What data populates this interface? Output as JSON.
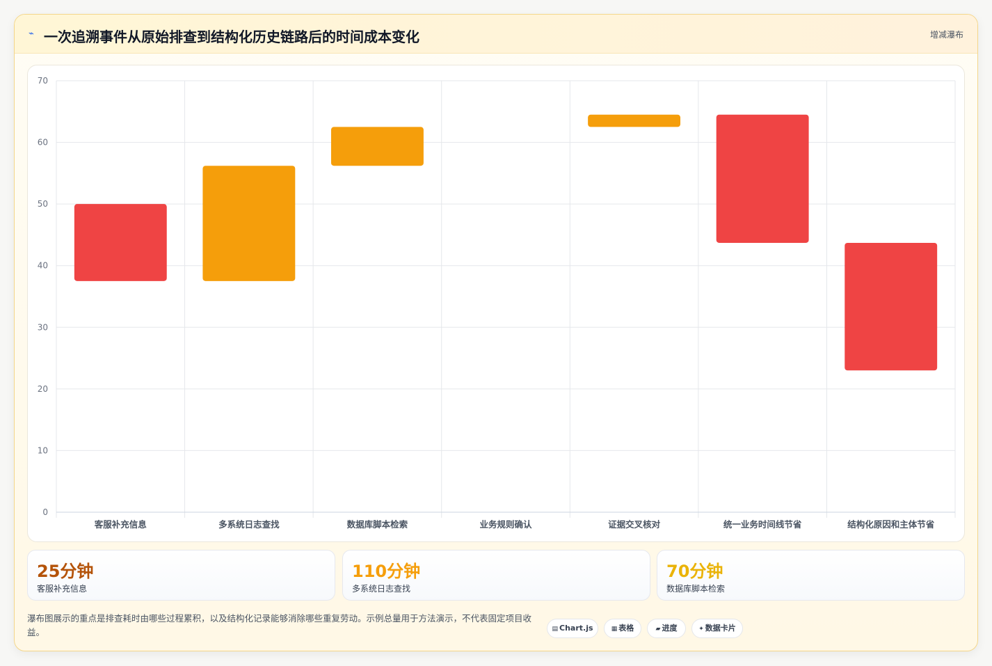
{
  "header": {
    "icon": "lightning-icon",
    "title": "一次追溯事件从原始排查到结构化历史链路后的时间成本变化",
    "chart_kind": "增减瀑布"
  },
  "colors": {
    "increase": "#f59e0b",
    "decrease": "#ef4444",
    "grid": "#e5e7eb",
    "tick": "#6b7280"
  },
  "chart_data": {
    "type": "bar",
    "subtype": "waterfall",
    "categories": [
      "客服补充信息",
      "多系统日志查找",
      "数据库脚本检索",
      "业务规则确认",
      "证据交叉核对",
      "统一业务时间线节省",
      "结构化原因和主体节省"
    ],
    "series": [
      {
        "values": [
          {
            "start": 37.5,
            "end": 50,
            "kind": "decrease"
          },
          {
            "start": 37.5,
            "end": 56.2,
            "kind": "increase"
          },
          {
            "start": 56.2,
            "end": 62.5,
            "kind": "increase"
          },
          {
            "start": 62.5,
            "end": 62.5,
            "kind": "increase"
          },
          {
            "start": 62.5,
            "end": 64.5,
            "kind": "increase"
          },
          {
            "start": 64.5,
            "end": 43.7,
            "kind": "decrease"
          },
          {
            "start": 43.7,
            "end": 23,
            "kind": "decrease"
          }
        ]
      }
    ],
    "ylim": [
      0,
      70
    ],
    "yticks": [
      0,
      10,
      20,
      30,
      40,
      50,
      60,
      70
    ],
    "grid": true,
    "xlabel": "",
    "ylabel": ""
  },
  "stats": [
    {
      "value": "25分钟",
      "label": "客服补充信息",
      "color": "#b45309"
    },
    {
      "value": "110分钟",
      "label": "多系统日志查找",
      "color": "#f59e0b"
    },
    {
      "value": "70分钟",
      "label": "数据库脚本检索",
      "color": "#eab308"
    }
  ],
  "footnote": "瀑布图展示的重点是排查耗时由哪些过程累积，以及结构化记录能够消除哪些重复劳动。示例总量用于方法演示，不代表固定项目收益。",
  "tags": [
    {
      "icon": "chart-icon",
      "glyph": "▤",
      "label": "Chart.js"
    },
    {
      "icon": "table-icon",
      "glyph": "▦",
      "label": "表格"
    },
    {
      "icon": "progress-icon",
      "glyph": "▰",
      "label": "进度"
    },
    {
      "icon": "sparkle-icon",
      "glyph": "✦",
      "label": "数据卡片"
    }
  ]
}
